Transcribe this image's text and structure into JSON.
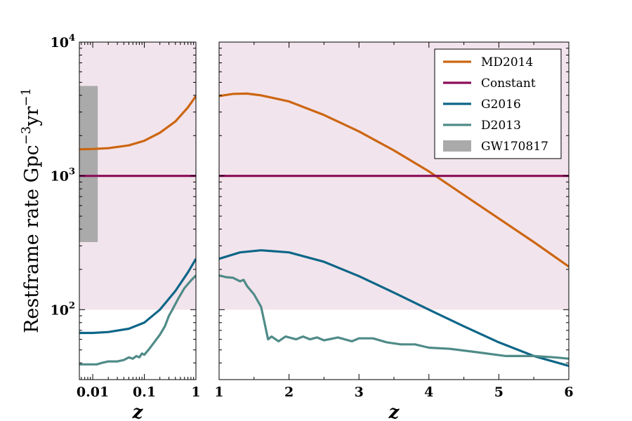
{
  "chart_data": {
    "type": "line",
    "ylabel": "Restframe rate Gpc",
    "ylabel_sup1": "−3",
    "ylabel_mid": "yr",
    "ylabel_sup2": "−1",
    "xlabel": "z",
    "yscale": "log",
    "ylim": [
      30,
      10000
    ],
    "y_ticks": [
      {
        "value": 100,
        "base": "10",
        "exp": "2"
      },
      {
        "value": 1000,
        "base": "10",
        "exp": "3"
      },
      {
        "value": 10000,
        "base": "10",
        "exp": "4"
      }
    ],
    "shaded_band": {
      "y_from": 100,
      "y_to": 10000,
      "color": "#f2e4ec"
    },
    "panels": [
      {
        "id": "left",
        "xscale": "log",
        "xlim": [
          0.0055,
          1.0
        ],
        "x_ticks": [
          {
            "value": 0.01,
            "label": "0.01"
          },
          {
            "value": 0.1,
            "label": "0.1"
          },
          {
            "value": 1,
            "label": "1"
          }
        ]
      },
      {
        "id": "right",
        "xscale": "linear",
        "xlim": [
          1,
          6
        ],
        "x_ticks": [
          {
            "value": 1,
            "label": "1"
          },
          {
            "value": 2,
            "label": "2"
          },
          {
            "value": 3,
            "label": "3"
          },
          {
            "value": 4,
            "label": "4"
          },
          {
            "value": 5,
            "label": "5"
          },
          {
            "value": 6,
            "label": "6"
          }
        ]
      }
    ],
    "series": [
      {
        "name": "MD2014",
        "color": "#cc6611",
        "left": [
          [
            0.0055,
            1580
          ],
          [
            0.01,
            1590
          ],
          [
            0.02,
            1610
          ],
          [
            0.05,
            1690
          ],
          [
            0.1,
            1830
          ],
          [
            0.2,
            2100
          ],
          [
            0.4,
            2550
          ],
          [
            0.7,
            3250
          ],
          [
            1.0,
            3950
          ]
        ],
        "right": [
          [
            1.0,
            3950
          ],
          [
            1.2,
            4100
          ],
          [
            1.4,
            4120
          ],
          [
            1.6,
            4000
          ],
          [
            2.0,
            3600
          ],
          [
            2.5,
            2850
          ],
          [
            3.0,
            2150
          ],
          [
            3.5,
            1550
          ],
          [
            4.0,
            1080
          ],
          [
            4.5,
            720
          ],
          [
            5.0,
            480
          ],
          [
            5.5,
            320
          ],
          [
            6.0,
            210
          ]
        ]
      },
      {
        "name": "Constant",
        "color": "#8b0e57",
        "left": [
          [
            0.0055,
            1000
          ],
          [
            1.0,
            1000
          ]
        ],
        "right": [
          [
            1.0,
            1000
          ],
          [
            6.0,
            1000
          ]
        ]
      },
      {
        "name": "G2016",
        "color": "#0d6688",
        "left": [
          [
            0.0055,
            67
          ],
          [
            0.01,
            67
          ],
          [
            0.02,
            68
          ],
          [
            0.05,
            72
          ],
          [
            0.1,
            80
          ],
          [
            0.2,
            100
          ],
          [
            0.4,
            138
          ],
          [
            0.7,
            190
          ],
          [
            1.0,
            240
          ]
        ],
        "right": [
          [
            1.0,
            240
          ],
          [
            1.3,
            268
          ],
          [
            1.6,
            278
          ],
          [
            2.0,
            268
          ],
          [
            2.5,
            228
          ],
          [
            3.0,
            178
          ],
          [
            3.5,
            134
          ],
          [
            4.0,
            100
          ],
          [
            4.5,
            75
          ],
          [
            5.0,
            57
          ],
          [
            5.5,
            45
          ],
          [
            6.0,
            38
          ]
        ]
      },
      {
        "name": "D2013",
        "color": "#4f8b88",
        "left": [
          [
            0.0055,
            39
          ],
          [
            0.01,
            39
          ],
          [
            0.012,
            39
          ],
          [
            0.015,
            40
          ],
          [
            0.02,
            41
          ],
          [
            0.03,
            41
          ],
          [
            0.04,
            42
          ],
          [
            0.05,
            44
          ],
          [
            0.06,
            43
          ],
          [
            0.07,
            45
          ],
          [
            0.08,
            44
          ],
          [
            0.09,
            47
          ],
          [
            0.1,
            46
          ],
          [
            0.12,
            50
          ],
          [
            0.15,
            56
          ],
          [
            0.2,
            65
          ],
          [
            0.25,
            75
          ],
          [
            0.3,
            90
          ],
          [
            0.35,
            100
          ],
          [
            0.45,
            120
          ],
          [
            0.6,
            145
          ],
          [
            0.8,
            165
          ],
          [
            1.0,
            180
          ]
        ],
        "right": [
          [
            1.0,
            180
          ],
          [
            1.1,
            175
          ],
          [
            1.2,
            173
          ],
          [
            1.3,
            163
          ],
          [
            1.35,
            167
          ],
          [
            1.4,
            150
          ],
          [
            1.5,
            130
          ],
          [
            1.6,
            105
          ],
          [
            1.65,
            80
          ],
          [
            1.7,
            60
          ],
          [
            1.75,
            63
          ],
          [
            1.85,
            58
          ],
          [
            1.95,
            63
          ],
          [
            2.1,
            60
          ],
          [
            2.2,
            63
          ],
          [
            2.3,
            60
          ],
          [
            2.4,
            62
          ],
          [
            2.5,
            59
          ],
          [
            2.7,
            62
          ],
          [
            2.9,
            58
          ],
          [
            3.0,
            61
          ],
          [
            3.2,
            61
          ],
          [
            3.4,
            57
          ],
          [
            3.6,
            55
          ],
          [
            3.8,
            55
          ],
          [
            4.0,
            52
          ],
          [
            4.3,
            51
          ],
          [
            4.7,
            48
          ],
          [
            5.1,
            45
          ],
          [
            5.5,
            45
          ],
          [
            5.8,
            44
          ],
          [
            6.0,
            43
          ]
        ]
      }
    ],
    "gw_box": {
      "name": "GW170817",
      "x_from": 0.0055,
      "x_to": 0.0125,
      "y_from": 320,
      "y_to": 4700,
      "color": "#aaaaaa"
    },
    "legend": {
      "position": "top-right",
      "entries": [
        {
          "label": "MD2014",
          "color": "#cc6611",
          "kind": "line"
        },
        {
          "label": "Constant",
          "color": "#8b0e57",
          "kind": "line"
        },
        {
          "label": "G2016",
          "color": "#0d6688",
          "kind": "line"
        },
        {
          "label": "D2013",
          "color": "#4f8b88",
          "kind": "line"
        },
        {
          "label": "GW170817",
          "color": "#aaaaaa",
          "kind": "patch"
        }
      ]
    }
  }
}
